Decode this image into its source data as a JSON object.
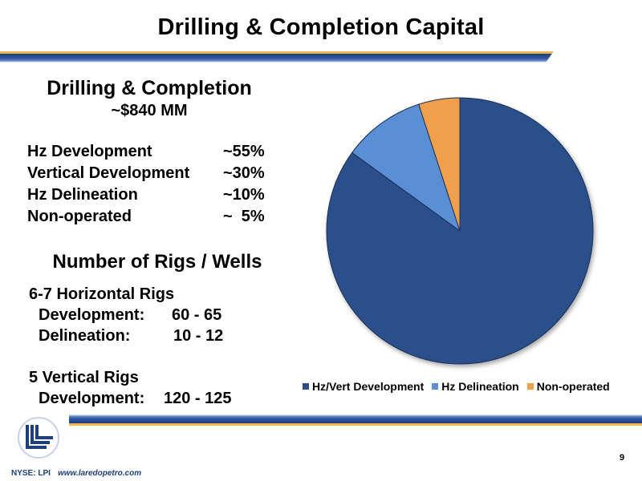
{
  "slide": {
    "title": "Drilling & Completion Capital",
    "page_number": "9"
  },
  "capital": {
    "heading": "Drilling & Completion",
    "amount": "~$840 MM",
    "rows": [
      {
        "label": "Hz Development",
        "pct": "~55%"
      },
      {
        "label": "Vertical Development",
        "pct": "~30%"
      },
      {
        "label": "Hz Delineation",
        "pct": "~10%"
      },
      {
        "label": "Non-operated",
        "pct": "~  5%"
      }
    ]
  },
  "rigs": {
    "heading": "Number of Rigs / Wells",
    "horizontal_title": "6-7 Horizontal Rigs",
    "horizontal_dev_label": "Development:",
    "horizontal_dev_value": "60 - 65",
    "horizontal_del_label": "Delineation:",
    "horizontal_del_value": "10 - 12",
    "vertical_title": "5 Vertical Rigs",
    "vertical_dev_label": "Development:",
    "vertical_dev_value": "120 - 125"
  },
  "footer": {
    "ticker": "NYSE: LPI",
    "website": "www.laredopetro.com"
  },
  "colors": {
    "dark_blue": "#2b4f8a",
    "light_blue": "#5a8fd6",
    "orange": "#f0a04b",
    "accent_gold": "#f2b84b"
  },
  "chart_data": {
    "type": "pie",
    "title": "",
    "start": "12 o'clock",
    "direction": "clockwise",
    "series": [
      {
        "name": "Hz/Vert Development",
        "value": 85,
        "color": "#2b4f8a"
      },
      {
        "name": "Hz Delineation",
        "value": 10,
        "color": "#5a8fd6"
      },
      {
        "name": "Non-operated",
        "value": 5,
        "color": "#f0a04b"
      }
    ],
    "legend_position": "bottom"
  }
}
